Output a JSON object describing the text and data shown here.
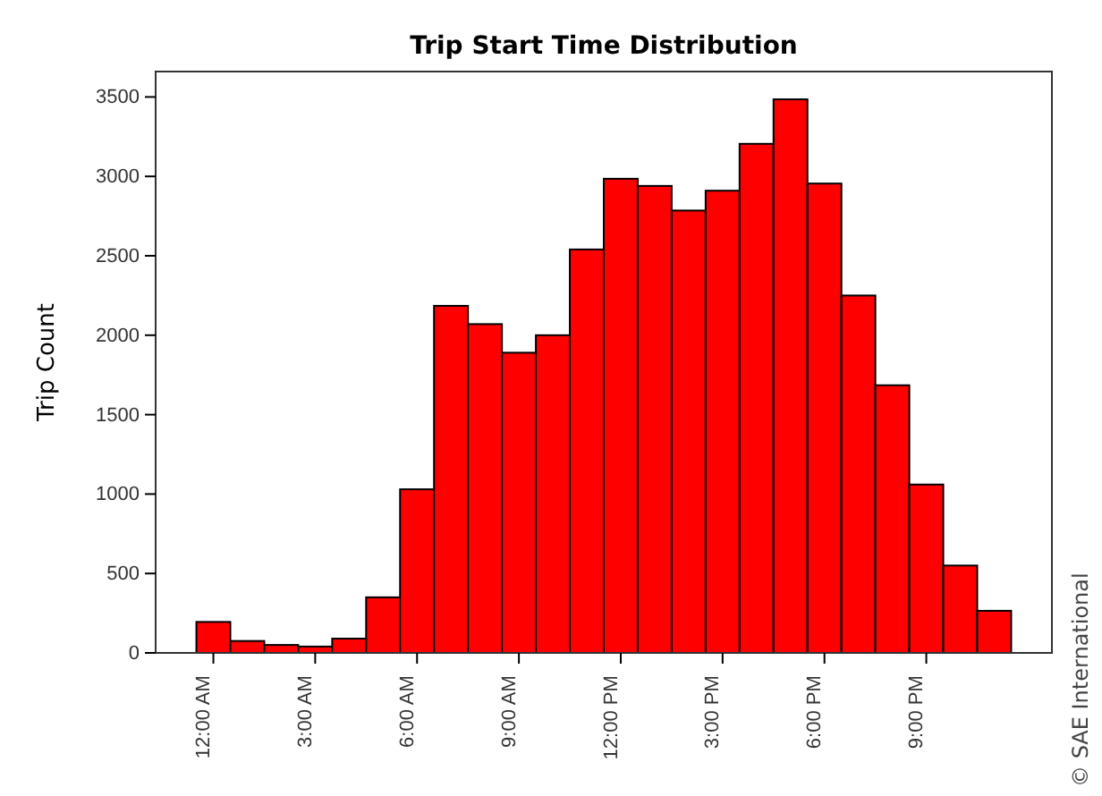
{
  "chart_data": {
    "type": "histogram",
    "title": "Trip Start Time Distribution",
    "ylabel": "Trip Count",
    "bins": [
      -0.5,
      0.5,
      1.5,
      2.5,
      3.5,
      4.5,
      5.5,
      6.5,
      7.5,
      8.5,
      9.5,
      10.5,
      11.5,
      12.5,
      13.5,
      14.5,
      15.5,
      16.5,
      17.5,
      18.5,
      19.5,
      20.5,
      21.5,
      22.5,
      23.5
    ],
    "values": [
      195,
      75,
      50,
      40,
      90,
      350,
      1030,
      2185,
      2070,
      1890,
      2000,
      2540,
      2985,
      2940,
      2785,
      2910,
      3205,
      3485,
      2955,
      2250,
      1685,
      1060,
      550,
      265
    ],
    "color": "#ff0000",
    "xlim": [
      -1.7,
      24.7
    ],
    "ylim": [
      0,
      3660
    ],
    "xticks": [
      {
        "value": 0,
        "label": "12:00 AM"
      },
      {
        "value": 3,
        "label": "3:00 AM"
      },
      {
        "value": 6,
        "label": "6:00 AM"
      },
      {
        "value": 9,
        "label": "9:00 AM"
      },
      {
        "value": 12,
        "label": "12:00 PM"
      },
      {
        "value": 15,
        "label": "3:00 PM"
      },
      {
        "value": 18,
        "label": "6:00 PM"
      },
      {
        "value": 21,
        "label": "9:00 PM"
      }
    ],
    "yticks": [
      0,
      500,
      1000,
      1500,
      2000,
      2500,
      3000,
      3500
    ],
    "annotations": [
      "© SAE International"
    ]
  }
}
